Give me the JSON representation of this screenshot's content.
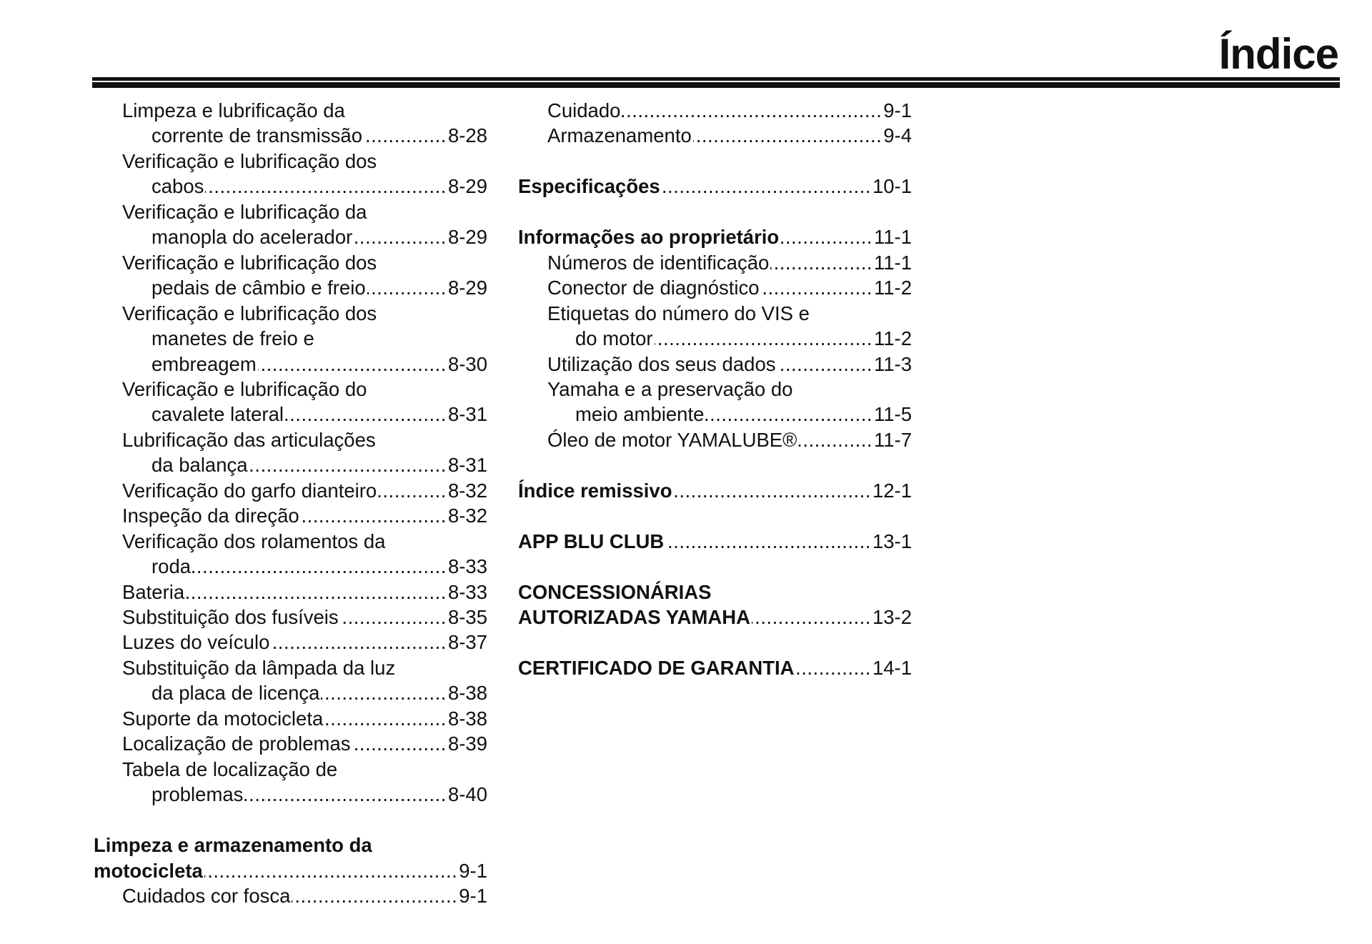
{
  "header": {
    "title": "Índice"
  },
  "columns": [
    {
      "entries": [
        {
          "bold": false,
          "lines": [
            "Limpeza e lubrificação da",
            "corrente de transmissão"
          ],
          "page": "8-28"
        },
        {
          "bold": false,
          "lines": [
            "Verificação e lubrificação dos",
            "cabos"
          ],
          "page": "8-29"
        },
        {
          "bold": false,
          "lines": [
            "Verificação e lubrificação da",
            "manopla do acelerador"
          ],
          "page": "8-29"
        },
        {
          "bold": false,
          "lines": [
            "Verificação e lubrificação dos",
            "pedais de câmbio e freio"
          ],
          "page": "8-29"
        },
        {
          "bold": false,
          "lines": [
            "Verificação e lubrificação dos",
            "manetes de freio e",
            "embreagem"
          ],
          "page": "8-30"
        },
        {
          "bold": false,
          "lines": [
            "Verificação e lubrificação do",
            "cavalete lateral"
          ],
          "page": "8-31"
        },
        {
          "bold": false,
          "lines": [
            "Lubrificação das articulações",
            "da balança"
          ],
          "page": "8-31"
        },
        {
          "bold": false,
          "lines": [
            "Verificação do garfo dianteiro"
          ],
          "page": "8-32"
        },
        {
          "bold": false,
          "lines": [
            "Inspeção da direção"
          ],
          "page": "8-32"
        },
        {
          "bold": false,
          "lines": [
            "Verificação dos rolamentos da",
            "roda"
          ],
          "page": "8-33"
        },
        {
          "bold": false,
          "lines": [
            "Bateria"
          ],
          "page": "8-33"
        },
        {
          "bold": false,
          "lines": [
            "Substituição dos fusíveis"
          ],
          "page": "8-35"
        },
        {
          "bold": false,
          "lines": [
            "Luzes do veículo"
          ],
          "page": "8-37"
        },
        {
          "bold": false,
          "lines": [
            "Substituição da lâmpada da luz",
            "da placa de licença"
          ],
          "page": "8-38"
        },
        {
          "bold": false,
          "lines": [
            "Suporte da motocicleta"
          ],
          "page": "8-38"
        },
        {
          "bold": false,
          "lines": [
            "Localização de problemas"
          ],
          "page": "8-39"
        },
        {
          "bold": false,
          "lines": [
            "Tabela de localização de",
            "problemas"
          ],
          "page": "8-40"
        },
        {
          "bold": true,
          "lines": [
            "Limpeza e armazenamento da",
            "motocicleta"
          ],
          "page": "9-1"
        },
        {
          "bold": false,
          "lines": [
            "Cuidados cor fosca"
          ],
          "page": "9-1"
        }
      ]
    },
    {
      "entries": [
        {
          "bold": false,
          "lines": [
            "Cuidado"
          ],
          "page": "9-1"
        },
        {
          "bold": false,
          "lines": [
            "Armazenamento"
          ],
          "page": "9-4"
        },
        {
          "bold": true,
          "lines": [
            "Especificações"
          ],
          "page": "10-1"
        },
        {
          "bold": true,
          "lines": [
            "Informações ao proprietário"
          ],
          "page": "11-1"
        },
        {
          "bold": false,
          "lines": [
            "Números de identificação"
          ],
          "page": "11-1"
        },
        {
          "bold": false,
          "lines": [
            "Conector de diagnóstico"
          ],
          "page": "11-2"
        },
        {
          "bold": false,
          "lines": [
            "Etiquetas do número do VIS e",
            "do motor"
          ],
          "page": "11-2"
        },
        {
          "bold": false,
          "lines": [
            "Utilização dos seus dados"
          ],
          "page": "11-3"
        },
        {
          "bold": false,
          "lines": [
            "Yamaha e a preservação do",
            "meio ambiente"
          ],
          "page": "11-5"
        },
        {
          "bold": false,
          "lines": [
            "Óleo de motor YAMALUBE®"
          ],
          "page": "11-7"
        },
        {
          "bold": true,
          "lines": [
            "Índice remissivo"
          ],
          "page": "12-1"
        },
        {
          "bold": true,
          "lines": [
            "APP BLU CLUB"
          ],
          "page": "13-1"
        },
        {
          "bold": true,
          "lines": [
            "CONCESSIONÁRIAS",
            "AUTORIZADAS YAMAHA"
          ],
          "page": "13-2"
        },
        {
          "bold": true,
          "lines": [
            "CERTIFICADO DE GARANTIA"
          ],
          "page": "14-1"
        }
      ]
    }
  ]
}
